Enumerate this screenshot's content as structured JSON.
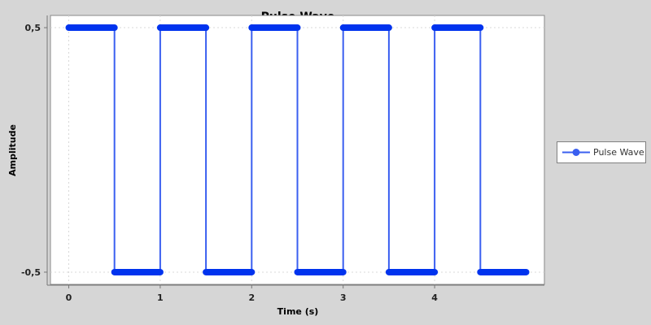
{
  "chart_data": {
    "type": "line",
    "title": "Pulse Wave",
    "xlabel": "Time (s)",
    "ylabel": "Amplitude",
    "xlim": [
      -0.2,
      5.2
    ],
    "ylim": [
      -0.55,
      0.55
    ],
    "xticks": [
      {
        "value": 0,
        "label": "0"
      },
      {
        "value": 1,
        "label": "1"
      },
      {
        "value": 2,
        "label": "2"
      },
      {
        "value": 3,
        "label": "3"
      },
      {
        "value": 4,
        "label": "4"
      }
    ],
    "yticks": [
      {
        "value": 0.5,
        "label": "0,5"
      },
      {
        "value": -0.5,
        "label": "-0,5"
      }
    ],
    "grid": true,
    "legend_position": "right",
    "series": [
      {
        "name": "Pulse Wave",
        "color": "#3a5ff0",
        "marker_color": "#0033ee",
        "segments": [
          {
            "x": [
              0,
              0.5
            ],
            "y": 0.5
          },
          {
            "x": [
              0.5,
              1.0
            ],
            "y": -0.5
          },
          {
            "x": [
              1.0,
              1.5
            ],
            "y": 0.5
          },
          {
            "x": [
              1.5,
              2.0
            ],
            "y": -0.5
          },
          {
            "x": [
              2.0,
              2.5
            ],
            "y": 0.5
          },
          {
            "x": [
              2.5,
              3.0
            ],
            "y": -0.5
          },
          {
            "x": [
              3.0,
              3.5
            ],
            "y": 0.5
          },
          {
            "x": [
              3.5,
              4.0
            ],
            "y": -0.5
          },
          {
            "x": [
              4.0,
              4.5
            ],
            "y": 0.5
          },
          {
            "x": [
              4.5,
              5.0
            ],
            "y": -0.5
          }
        ]
      }
    ]
  },
  "legend": {
    "label": "Pulse Wave"
  }
}
